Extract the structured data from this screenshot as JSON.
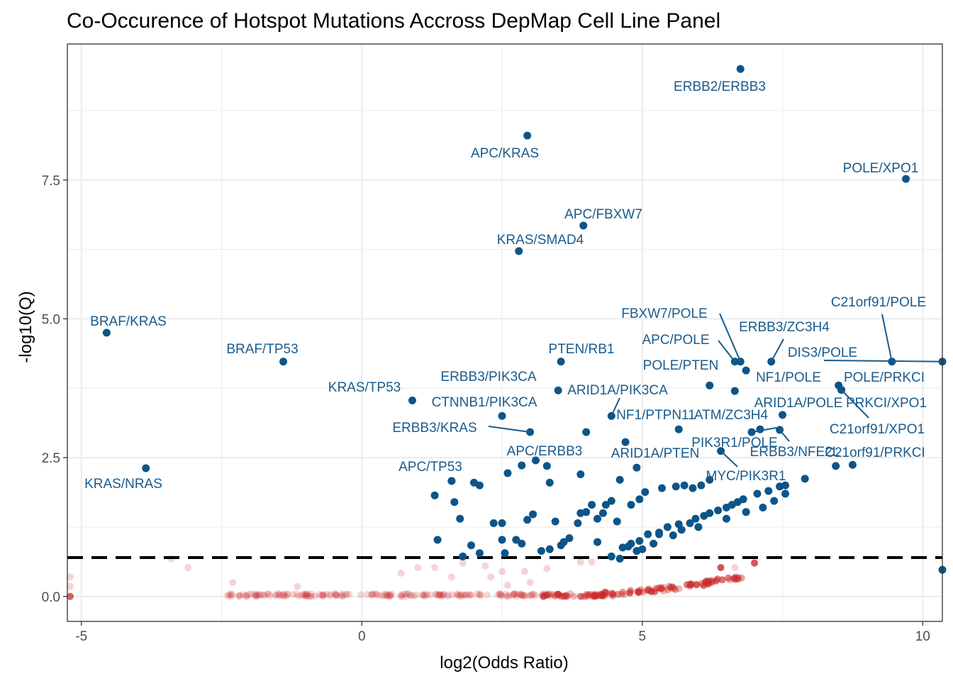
{
  "chart_data": {
    "type": "scatter",
    "title": "Co-Occurence of Hotspot Mutations Accross DepMap Cell Line Panel",
    "xlabel": "log2(Odds Ratio)",
    "ylabel": "-log10(Q)",
    "xlim": [
      -5.25,
      10.35
    ],
    "ylim": [
      -0.45,
      9.95
    ],
    "x_ticks": [
      -5,
      0,
      5,
      10
    ],
    "x_tick_labels": [
      "-5",
      "0",
      "5",
      "10"
    ],
    "y_ticks": [
      0,
      2.5,
      5,
      7.5
    ],
    "y_tick_labels": [
      "0.0",
      "2.5",
      "5.0",
      "7.5"
    ],
    "grid": true,
    "threshold_line": {
      "y": 0.7,
      "style": "dashed",
      "color": "#000000"
    },
    "colors": {
      "significant": "#0d5588",
      "nonsignificant": "#cc2a2a",
      "label": "#1a5b8c",
      "panel_border": "#333333",
      "grid": "#ebebeb"
    },
    "labeled_points": [
      {
        "label": "ERBB2/ERBB3",
        "x": 6.75,
        "y": 9.5
      },
      {
        "label": "APC/KRAS",
        "x": 2.95,
        "y": 8.3
      },
      {
        "label": "POLE/XPO1",
        "x": 9.7,
        "y": 7.52
      },
      {
        "label": "APC/FBXW7",
        "x": 3.95,
        "y": 6.68
      },
      {
        "label": "KRAS/SMAD4",
        "x": 2.8,
        "y": 6.22
      },
      {
        "label": "BRAF/KRAS",
        "x": -4.55,
        "y": 4.75
      },
      {
        "label": "BRAF/TP53",
        "x": -1.4,
        "y": 4.23
      },
      {
        "label": "C21orf91/POLE",
        "x": 9.45,
        "y": 4.23
      },
      {
        "label": "FBXW7/POLE",
        "x": 6.75,
        "y": 4.23
      },
      {
        "label": "ERBB3/ZC3H4",
        "x": 7.3,
        "y": 4.23
      },
      {
        "label": "APC/POLE",
        "x": 6.65,
        "y": 4.23
      },
      {
        "label": "DIS3/POLE",
        "x": 10.35,
        "y": 4.23
      },
      {
        "label": "PTEN/RB1",
        "x": 3.55,
        "y": 4.23
      },
      {
        "label": "POLE/PTEN",
        "x": 6.2,
        "y": 3.8
      },
      {
        "label": "NF1/POLE",
        "x": 6.85,
        "y": 4.07
      },
      {
        "label": "POLE/PRKCI",
        "x": 8.5,
        "y": 3.8
      },
      {
        "label": "ERBB3/PIK3CA",
        "x": 3.5,
        "y": 3.71
      },
      {
        "label": "ARID1A/PIK3CA",
        "x": 4.45,
        "y": 3.25
      },
      {
        "label": "KRAS/TP53",
        "x": 0.9,
        "y": 3.53
      },
      {
        "label": "CTNNB1/PIK3CA",
        "x": 2.5,
        "y": 3.25
      },
      {
        "label": "PRKCI/XPO1",
        "x": 8.55,
        "y": 3.72
      },
      {
        "label": "ARID1A/POLE",
        "x": 7.5,
        "y": 3.27
      },
      {
        "label": "NF1/PTPN11",
        "x": 5.65,
        "y": 3.01
      },
      {
        "label": "ATM/ZC3H4",
        "x": 7.1,
        "y": 3.01
      },
      {
        "label": "ERBB3/KRAS",
        "x": 3.0,
        "y": 2.96
      },
      {
        "label": "C21orf91/XPO1",
        "x": 8.55,
        "y": 3.72
      },
      {
        "label": "PIK3R1/POLE",
        "x": 6.95,
        "y": 2.96
      },
      {
        "label": "ERBB3/NFE2L",
        "x": 7.45,
        "y": 3.0
      },
      {
        "label": "C21orf91/PRKCI",
        "x": 8.75,
        "y": 2.37
      },
      {
        "label": "APC/ERBB3",
        "x": 2.85,
        "y": 2.36
      },
      {
        "label": "ARID1A/PTEN",
        "x": 4.9,
        "y": 2.32
      },
      {
        "label": "APC/TP53",
        "x": 1.6,
        "y": 2.08
      },
      {
        "label": "KRAS/NRAS",
        "x": -3.85,
        "y": 2.31
      },
      {
        "label": "MYC/PIK3R1",
        "x": 6.4,
        "y": 2.62
      }
    ]
  }
}
